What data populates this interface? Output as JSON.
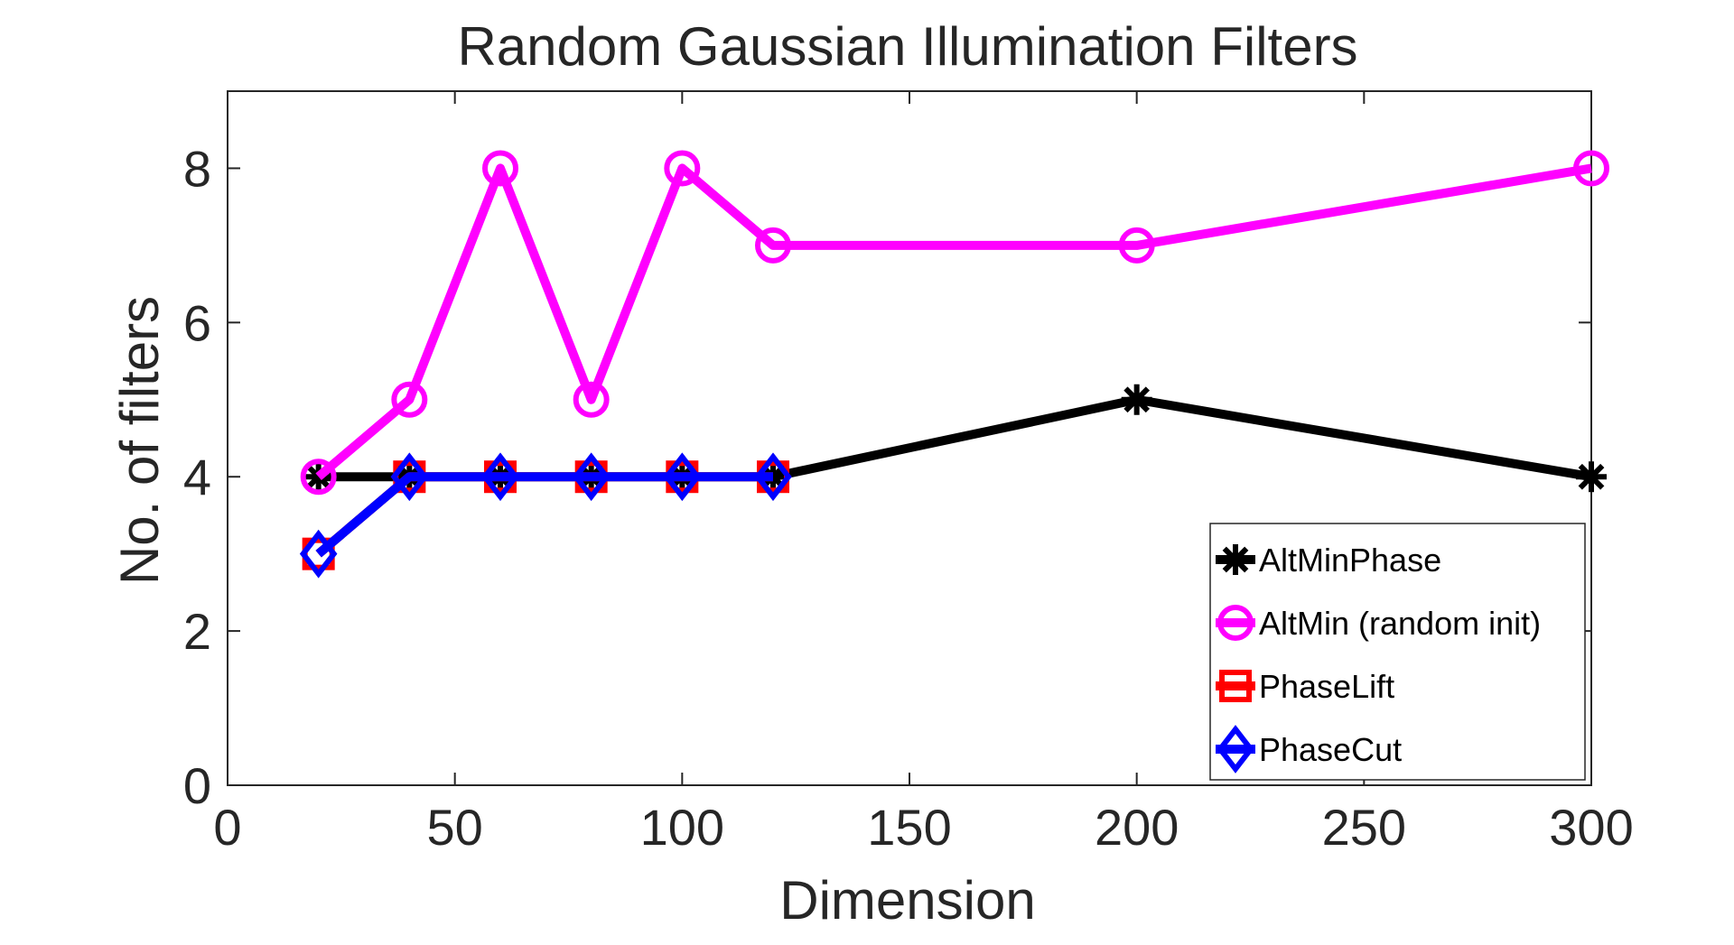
{
  "chart_data": {
    "type": "line",
    "title": "Random Gaussian Illumination Filters",
    "xlabel": "Dimension",
    "ylabel": "No. of filters",
    "xlim": [
      0,
      300
    ],
    "ylim": [
      0,
      9
    ],
    "xticks": [
      0,
      50,
      100,
      150,
      200,
      250,
      300
    ],
    "yticks": [
      0,
      2,
      4,
      6,
      8
    ],
    "grid": false,
    "legend_position": "bottom-right",
    "series": [
      {
        "name": "AltMinPhase",
        "color": "#000000",
        "marker": "asterisk",
        "x": [
          20,
          40,
          60,
          80,
          100,
          120,
          200,
          300
        ],
        "y": [
          4,
          4,
          4,
          4,
          4,
          4,
          5,
          4
        ]
      },
      {
        "name": "AltMin (random init)",
        "color": "#ff00ff",
        "marker": "circle",
        "x": [
          20,
          40,
          60,
          80,
          100,
          120,
          200,
          300
        ],
        "y": [
          4,
          5,
          8,
          5,
          8,
          7,
          7,
          8
        ]
      },
      {
        "name": "PhaseLift",
        "color": "#ff0000",
        "marker": "square",
        "x": [
          20,
          40,
          60,
          80,
          100,
          120
        ],
        "y": [
          3,
          4,
          4,
          4,
          4,
          4
        ]
      },
      {
        "name": "PhaseCut",
        "color": "#0000ff",
        "marker": "diamond",
        "x": [
          20,
          40,
          60,
          80,
          100,
          120
        ],
        "y": [
          3,
          4,
          4,
          4,
          4,
          4
        ]
      }
    ]
  }
}
